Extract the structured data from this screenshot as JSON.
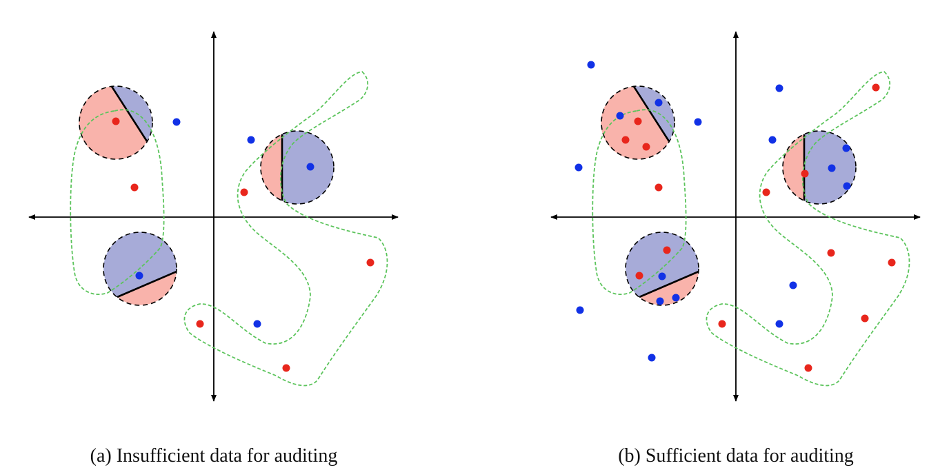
{
  "colors": {
    "red_point": "#e8261c",
    "blue_point": "#1131e6",
    "red_region": "#f9b3ab",
    "blue_region": "#a7abd8",
    "boundary": "#5cc45c",
    "axis": "#000000"
  },
  "panels": [
    {
      "id": "a",
      "caption": "(a) Insufficient data for auditing",
      "red_points": [
        [
          -1.42,
          1.39
        ],
        [
          -1.15,
          0.43
        ],
        [
          0.44,
          0.36
        ],
        [
          -0.2,
          -1.55
        ],
        [
          2.27,
          -0.66
        ],
        [
          1.05,
          -2.19
        ]
      ],
      "blue_points": [
        [
          -0.54,
          1.38
        ],
        [
          0.54,
          1.12
        ],
        [
          1.4,
          0.73
        ],
        [
          -1.08,
          -0.85
        ],
        [
          0.63,
          -1.55
        ]
      ],
      "neighborhoods": [
        {
          "center": [
            -1.42,
            1.37
          ],
          "split": "diagonal-upper-right-blue"
        },
        {
          "center": [
            1.21,
            0.72
          ],
          "split": "vertical-right-blue"
        },
        {
          "center": [
            -1.07,
            -0.75
          ],
          "split": "diagonal-upper-blue"
        }
      ]
    },
    {
      "id": "b",
      "caption": "(b) Sufficient data for auditing",
      "red_points": [
        [
          -1.42,
          1.39
        ],
        [
          -1.6,
          1.12
        ],
        [
          -1.3,
          1.02
        ],
        [
          -1.12,
          0.43
        ],
        [
          0.44,
          0.36
        ],
        [
          1.0,
          0.63
        ],
        [
          -1.0,
          -0.48
        ],
        [
          -1.4,
          -0.85
        ],
        [
          1.38,
          -0.52
        ],
        [
          2.26,
          -0.66
        ],
        [
          -0.2,
          -1.55
        ],
        [
          1.87,
          -1.47
        ],
        [
          2.03,
          1.88
        ],
        [
          1.05,
          -2.19
        ]
      ],
      "blue_points": [
        [
          -2.1,
          2.21
        ],
        [
          -1.68,
          1.47
        ],
        [
          -1.12,
          1.66
        ],
        [
          -0.55,
          1.38
        ],
        [
          0.63,
          1.87
        ],
        [
          0.53,
          1.12
        ],
        [
          1.6,
          1.0
        ],
        [
          1.39,
          0.71
        ],
        [
          1.61,
          0.45
        ],
        [
          -2.28,
          0.72
        ],
        [
          -1.07,
          -0.86
        ],
        [
          -1.1,
          -1.22
        ],
        [
          -0.87,
          -1.17
        ],
        [
          0.83,
          -0.99
        ],
        [
          0.63,
          -1.55
        ],
        [
          -1.22,
          -2.04
        ],
        [
          -2.26,
          -1.35
        ]
      ],
      "neighborhoods": [
        {
          "center": [
            -1.42,
            1.37
          ],
          "split": "diagonal-upper-right-blue"
        },
        {
          "center": [
            1.21,
            0.72
          ],
          "split": "vertical-right-blue"
        },
        {
          "center": [
            -1.07,
            -0.75
          ],
          "split": "diagonal-upper-blue"
        }
      ]
    }
  ]
}
